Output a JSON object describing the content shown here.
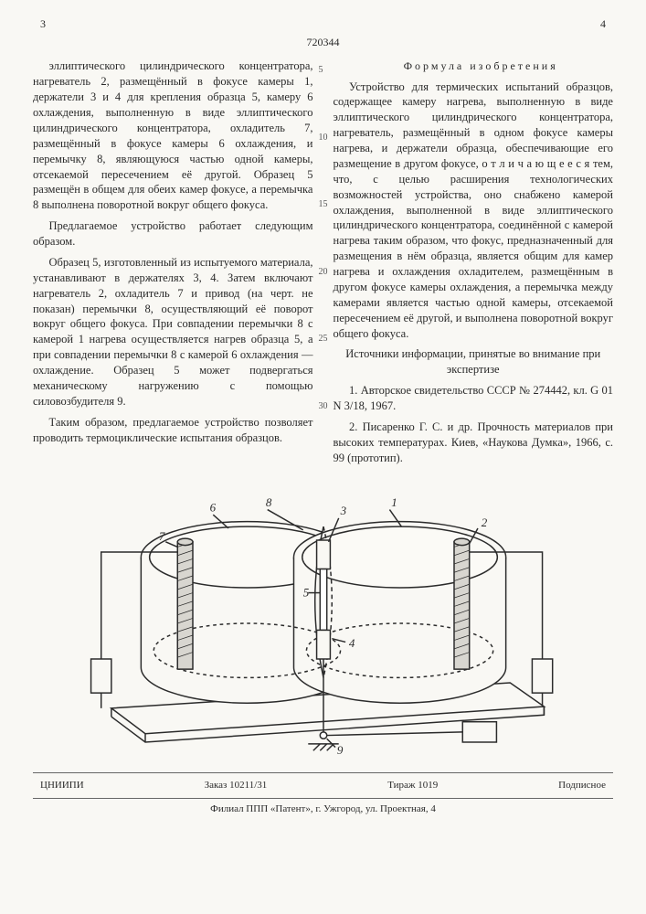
{
  "header": {
    "page_left": "3",
    "page_right": "4",
    "patent_number": "720344"
  },
  "line_numbers": [
    "5",
    "10",
    "15",
    "20",
    "25",
    "30"
  ],
  "left_col": {
    "p1": "эллиптического цилиндрического концентратора, нагреватель 2, размещённый в фокусе камеры 1, держатели 3 и 4 для крепления образца 5, камеру 6 охлаждения, выполненную в виде эллиптического цилиндрического концентратора, охладитель 7, размещённый в фокусе камеры 6 охлаждения, и перемычку 8, являющуюся частью одной камеры, отсекаемой пересечением её другой. Образец 5 размещён в общем для обеих камер фокусе, а перемычка 8 выполнена поворотной вокруг общего фокуса.",
    "p2": "Предлагаемое устройство работает следующим образом.",
    "p3": "Образец 5, изготовленный из испытуемого материала, устанавливают в держателях 3, 4. Затем включают нагреватель 2, охладитель 7 и привод (на черт. не показан) перемычки 8, осуществляющий её поворот вокруг общего фокуса. При совпадении перемычки 8 с камерой 1 нагрева осуществляется нагрев образца 5, а при совпадении перемычки 8 с камерой 6 охлаждения — охлаждение. Образец 5 может подвергаться механическому нагружению с помощью силовозбудителя 9.",
    "p4": "Таким образом, предлагаемое устройство позволяет проводить термоциклические испытания образцов."
  },
  "right_col": {
    "formula_heading": "Формула изобретения",
    "p1": "Устройство для термических испытаний образцов, содержащее камеру нагрева, выполненную в виде эллиптического цилиндрического концентратора, нагреватель, размещённый в одном фокусе камеры нагрева, и держатели образца, обеспечивающие его размещение в другом фокусе, о т л и ч а ю щ е е с я  тем, что, с целью расширения технологических возможностей устройства, оно снабжено камерой охлаждения, выполненной в виде эллиптического цилиндрического концентратора, соединённой с камерой нагрева таким образом, что фокус, предназначенный для размещения в нём образца, является общим для камер нагрева и охлаждения охладителем, размещённым в другом фокусе камеры охлаждения, а перемычка между камерами является частью одной камеры, отсекаемой пересечением её другой, и выполнена поворотной вокруг общего фокуса.",
    "sources_heading": "Источники информации, принятые во внимание при экспертизе",
    "src1": "1. Авторское свидетельство СССР № 274442, кл. G 01 N 3/18, 1967.",
    "src2": "2. Писаренко Г. С. и др. Прочность материалов при высоких температурах. Киев, «Наукова Думка», 1966, с. 99 (прототип)."
  },
  "figure": {
    "labels": [
      "1",
      "2",
      "3",
      "4",
      "5",
      "6",
      "7",
      "8",
      "9"
    ],
    "stroke": "#2b2b2b",
    "fill_light": "#f9f8f4",
    "fill_hatch": "#d8d6d0"
  },
  "footer": {
    "org": "ЦНИИПИ",
    "order": "Заказ 10211/31",
    "tirazh": "Тираж 1019",
    "signed": "Подписное",
    "addr": "Филиал ППП «Патент», г. Ужгород, ул. Проектная, 4"
  }
}
